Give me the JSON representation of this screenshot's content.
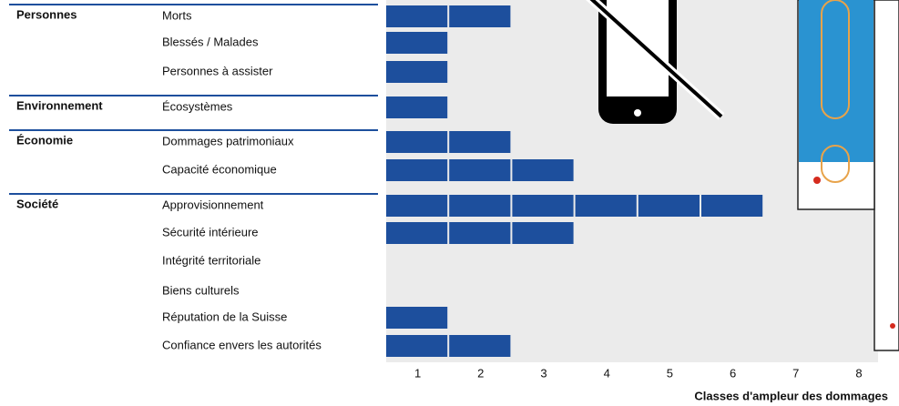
{
  "chart_data": {
    "type": "bar",
    "orientation": "horizontal",
    "color": "#1d4f9d",
    "groups": [
      {
        "name": "Personnes",
        "start": 0
      },
      {
        "name": "Environnement",
        "start": 3
      },
      {
        "name": "Économie",
        "start": 4
      },
      {
        "name": "Société",
        "start": 6
      }
    ],
    "categories": [
      "Morts",
      "Blessés / Malades",
      "Personnes à assister",
      "Écosystèmes",
      "Dommages patrimoniaux",
      "Capacité économique",
      "Approvisionnement",
      "Sécurité intérieure",
      "Intégrité territoriale",
      "Biens culturels",
      "Réputation de la Suisse",
      "Confiance envers les autorités"
    ],
    "values": [
      2,
      1,
      1,
      1,
      2,
      3,
      6,
      3,
      0,
      0,
      1,
      2
    ],
    "xlim": [
      0,
      8
    ],
    "xticks": [
      1,
      2,
      3,
      4,
      5,
      6,
      7,
      8
    ],
    "xlabel": "Classes d'ampleur des dommages"
  }
}
